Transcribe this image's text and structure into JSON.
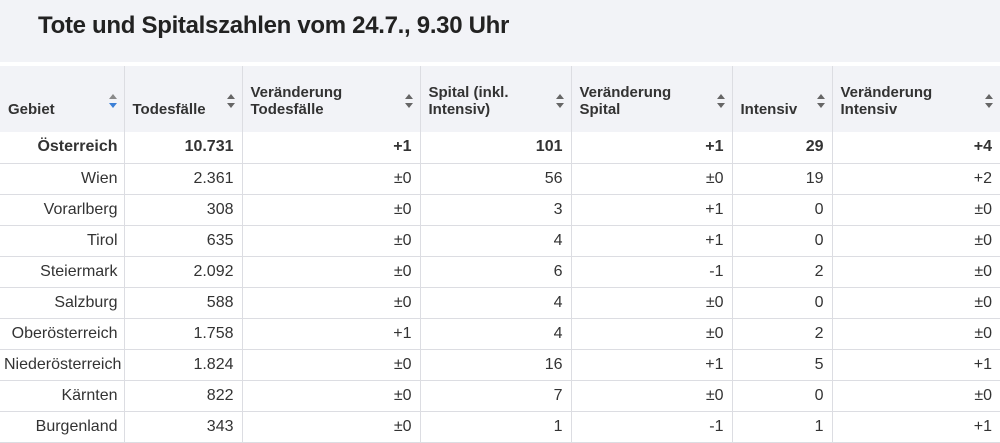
{
  "title": "Tote und Spitalszahlen vom 24.7., 9.30 Uhr",
  "columns": [
    {
      "label": "Gebiet"
    },
    {
      "label": "Todesfälle"
    },
    {
      "label": "Veränderung Todesfälle"
    },
    {
      "label": "Spital (inkl. Intensiv)"
    },
    {
      "label": "Veränderung Spital"
    },
    {
      "label": "Intensiv"
    },
    {
      "label": "Veränderung Intensiv"
    }
  ],
  "sort_icon": "sort-arrows-icon",
  "active_sort_color": "#3b7fd6",
  "rows": [
    [
      "Österreich",
      "10.731",
      "+1",
      "101",
      "+1",
      "29",
      "+4"
    ],
    [
      "Wien",
      "2.361",
      "±0",
      "56",
      "±0",
      "19",
      "+2"
    ],
    [
      "Vorarlberg",
      "308",
      "±0",
      "3",
      "+1",
      "0",
      "±0"
    ],
    [
      "Tirol",
      "635",
      "±0",
      "4",
      "+1",
      "0",
      "±0"
    ],
    [
      "Steiermark",
      "2.092",
      "±0",
      "6",
      "-1",
      "2",
      "±0"
    ],
    [
      "Salzburg",
      "588",
      "±0",
      "4",
      "±0",
      "0",
      "±0"
    ],
    [
      "Oberösterreich",
      "1.758",
      "+1",
      "4",
      "±0",
      "2",
      "±0"
    ],
    [
      "Niederösterreich",
      "1.824",
      "±0",
      "16",
      "+1",
      "5",
      "+1"
    ],
    [
      "Kärnten",
      "822",
      "±0",
      "7",
      "±0",
      "0",
      "±0"
    ],
    [
      "Burgenland",
      "343",
      "±0",
      "1",
      "-1",
      "1",
      "+1"
    ]
  ]
}
